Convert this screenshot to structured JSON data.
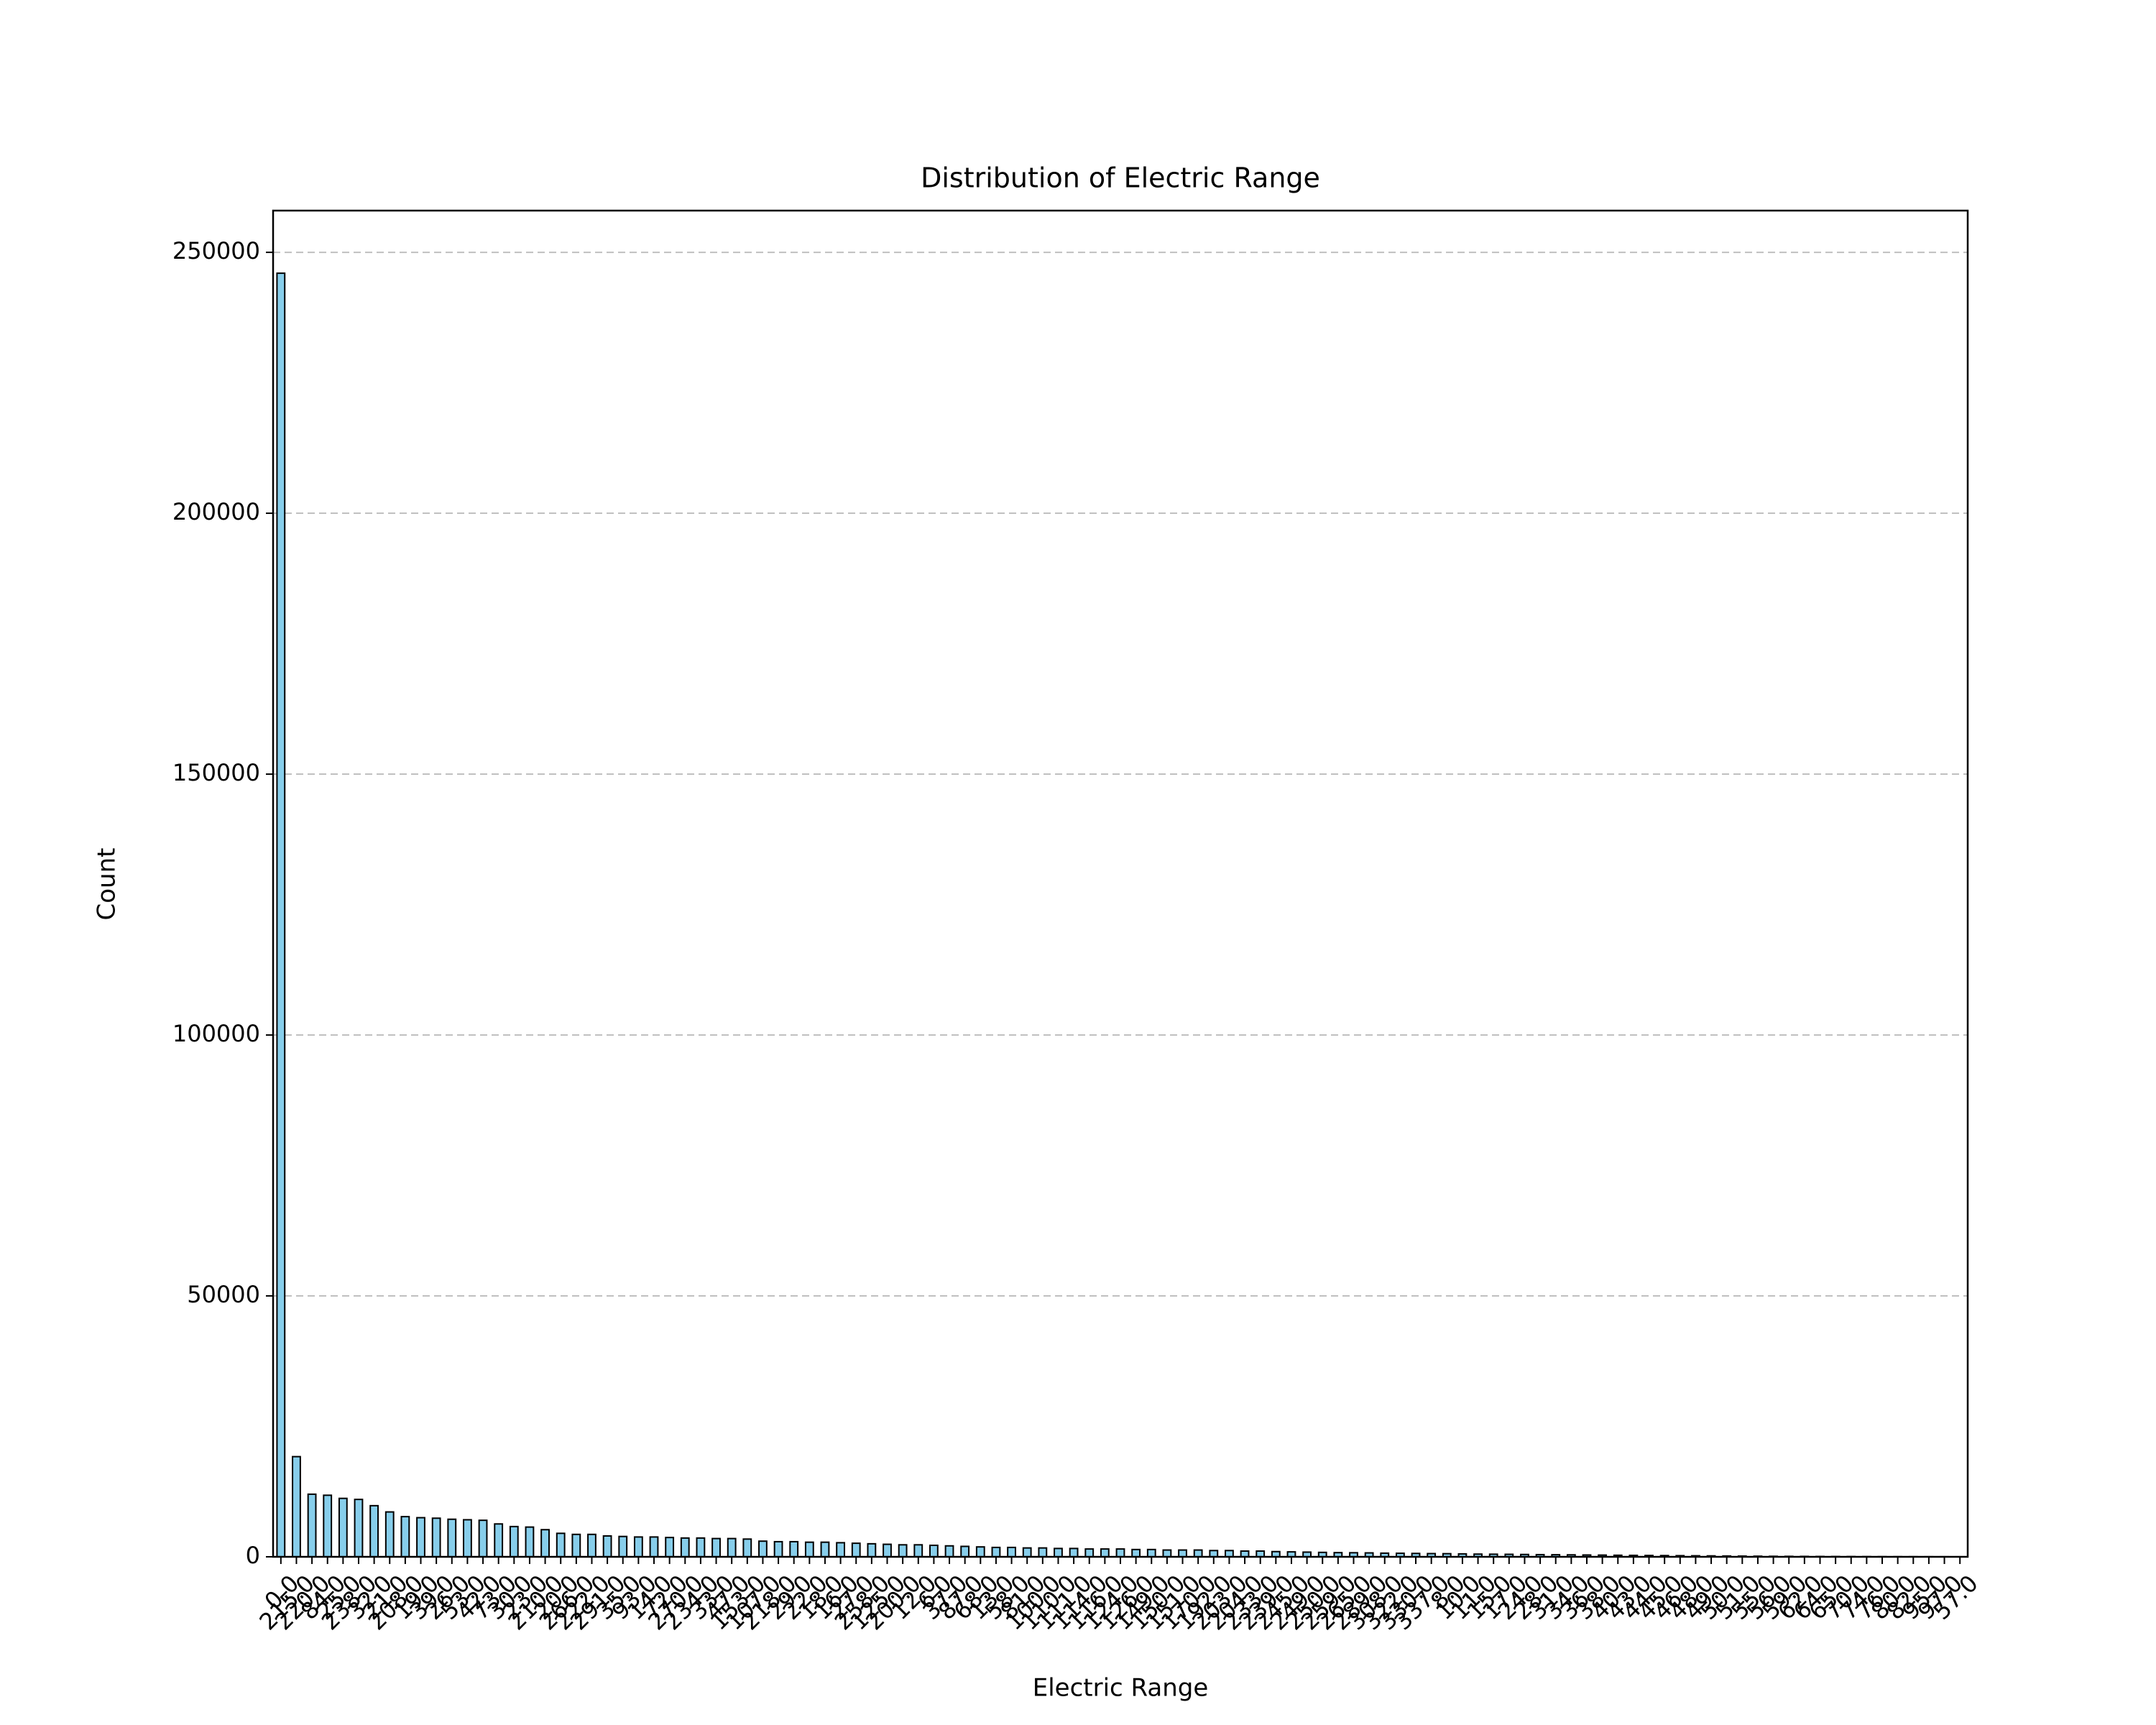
{
  "chart_data": {
    "type": "bar",
    "title": "Distribution of Electric Range",
    "x_label": "Electric Range",
    "y_label": "Count",
    "categories": [
      "0.0",
      "215.0",
      "220.0",
      "84.0",
      "25.0",
      "238.0",
      "32.0",
      "21.0",
      "208.0",
      "19.0",
      "39.0",
      "26.0",
      "53.0",
      "42.0",
      "73.0",
      "30.0",
      "23.0",
      "210.0",
      "20.0",
      "266.0",
      "222.0",
      "291.0",
      "35.0",
      "93.0",
      "14.0",
      "72.0",
      "270.0",
      "234.0",
      "33.0",
      "47.0",
      "153.0",
      "107.0",
      "218.0",
      "29.0",
      "22.0",
      "18.0",
      "16.0",
      "27.0",
      "258.0",
      "125.0",
      "200.0",
      "12.0",
      "6.0",
      "37.0",
      "87.0",
      "68.0",
      "13.0",
      "58.0",
      "81.0",
      "100.0",
      "110.0",
      "111.0",
      "114.0",
      "116.0",
      "124.0",
      "126.0",
      "149.0",
      "150.0",
      "151.0",
      "170.0",
      "192.0",
      "203.0",
      "204.0",
      "233.0",
      "239.0",
      "245.0",
      "249.0",
      "250.0",
      "259.0",
      "265.0",
      "289.0",
      "308.0",
      "322.0",
      "330.0",
      "337.0",
      "8.0",
      "10.0",
      "11.0",
      "15.0",
      "17.0",
      "24.0",
      "28.0",
      "31.0",
      "34.0",
      "36.0",
      "38.0",
      "40.0",
      "43.0",
      "44.0",
      "45.0",
      "46.0",
      "48.0",
      "49.0",
      "50.0",
      "51.0",
      "55.0",
      "56.0",
      "59.0",
      "62.0",
      "64.0",
      "65.0",
      "70.0",
      "74.0",
      "76.0",
      "80.0",
      "82.0",
      "95.0",
      "97.0",
      "57.0"
    ],
    "values": [
      246000,
      19200,
      12000,
      11800,
      11200,
      11000,
      9800,
      8600,
      7700,
      7500,
      7400,
      7200,
      7100,
      7000,
      6300,
      5800,
      5700,
      5200,
      4500,
      4300,
      4300,
      4000,
      3900,
      3800,
      3800,
      3700,
      3600,
      3600,
      3500,
      3500,
      3400,
      3000,
      2900,
      2900,
      2800,
      2800,
      2700,
      2600,
      2500,
      2400,
      2300,
      2300,
      2200,
      2100,
      2000,
      1900,
      1800,
      1800,
      1700,
      1700,
      1600,
      1600,
      1500,
      1500,
      1500,
      1400,
      1400,
      1300,
      1300,
      1300,
      1200,
      1200,
      1100,
      1100,
      1000,
      950,
      900,
      850,
      800,
      780,
      750,
      700,
      680,
      650,
      620,
      600,
      560,
      520,
      500,
      480,
      450,
      420,
      400,
      380,
      350,
      330,
      300,
      280,
      260,
      240,
      220,
      200,
      180,
      160,
      140,
      120,
      100,
      90,
      80,
      70,
      60,
      50,
      40,
      30,
      25,
      20,
      15,
      10,
      5
    ],
    "color": "#87ceeb",
    "edgecolor": "#000000",
    "ylim": [
      0,
      258000
    ],
    "yticks": [
      0,
      50000,
      100000,
      150000,
      200000,
      250000
    ],
    "grid": true
  }
}
